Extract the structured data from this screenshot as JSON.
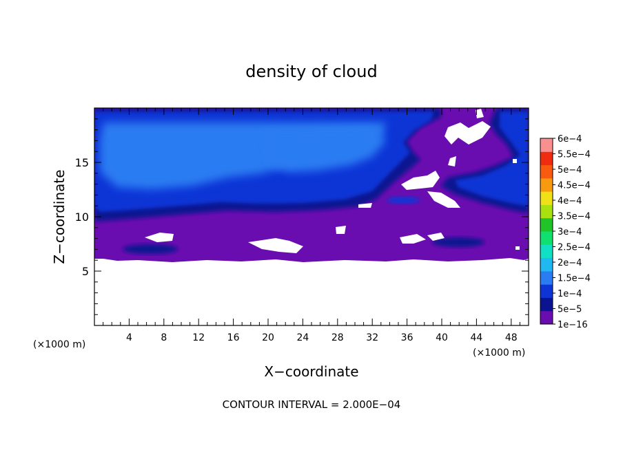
{
  "chart_data": {
    "type": "heatmap",
    "title": "density of cloud",
    "xlabel": "X−coordinate",
    "ylabel": "Z−coordinate",
    "x_unit_left": "(×1000 m)",
    "x_unit_right": "(×1000 m)",
    "xlim": [
      0,
      50
    ],
    "ylim": [
      0,
      20
    ],
    "x_ticks": [
      4,
      8,
      12,
      16,
      20,
      24,
      28,
      32,
      36,
      40,
      44,
      48
    ],
    "x_tick_labels": [
      "4",
      "8",
      "12",
      "16",
      "20",
      "24",
      "28",
      "32",
      "36",
      "40",
      "44",
      "48"
    ],
    "y_ticks": [
      5,
      10,
      15
    ],
    "y_tick_labels": [
      "5",
      "10",
      "15"
    ],
    "footer": "CONTOUR INTERVAL = 2.000E−04",
    "colorbar": {
      "labels": [
        "1e−16",
        "5e−5",
        "1e−4",
        "1.5e−4",
        "2e−4",
        "2.5e−4",
        "3e−4",
        "3.5e−4",
        "4e−4",
        "4.5e−4",
        "5e−4",
        "5.5e−4",
        "6e−4"
      ],
      "colors": [
        "#6a0db0",
        "#0a1490",
        "#0d35d6",
        "#2a7cf2",
        "#20b8f0",
        "#10e0c4",
        "#10e070",
        "#20c428",
        "#a8e010",
        "#f0e018",
        "#f89a10",
        "#f85a10",
        "#f02c10",
        "#f89090"
      ]
    },
    "fields": {
      "cloud_top_z": 19.6,
      "cloud_base_z": 6.3,
      "dense_layer_top_z": 19.5,
      "dense_layer_bottom_z": 10.3
    }
  }
}
